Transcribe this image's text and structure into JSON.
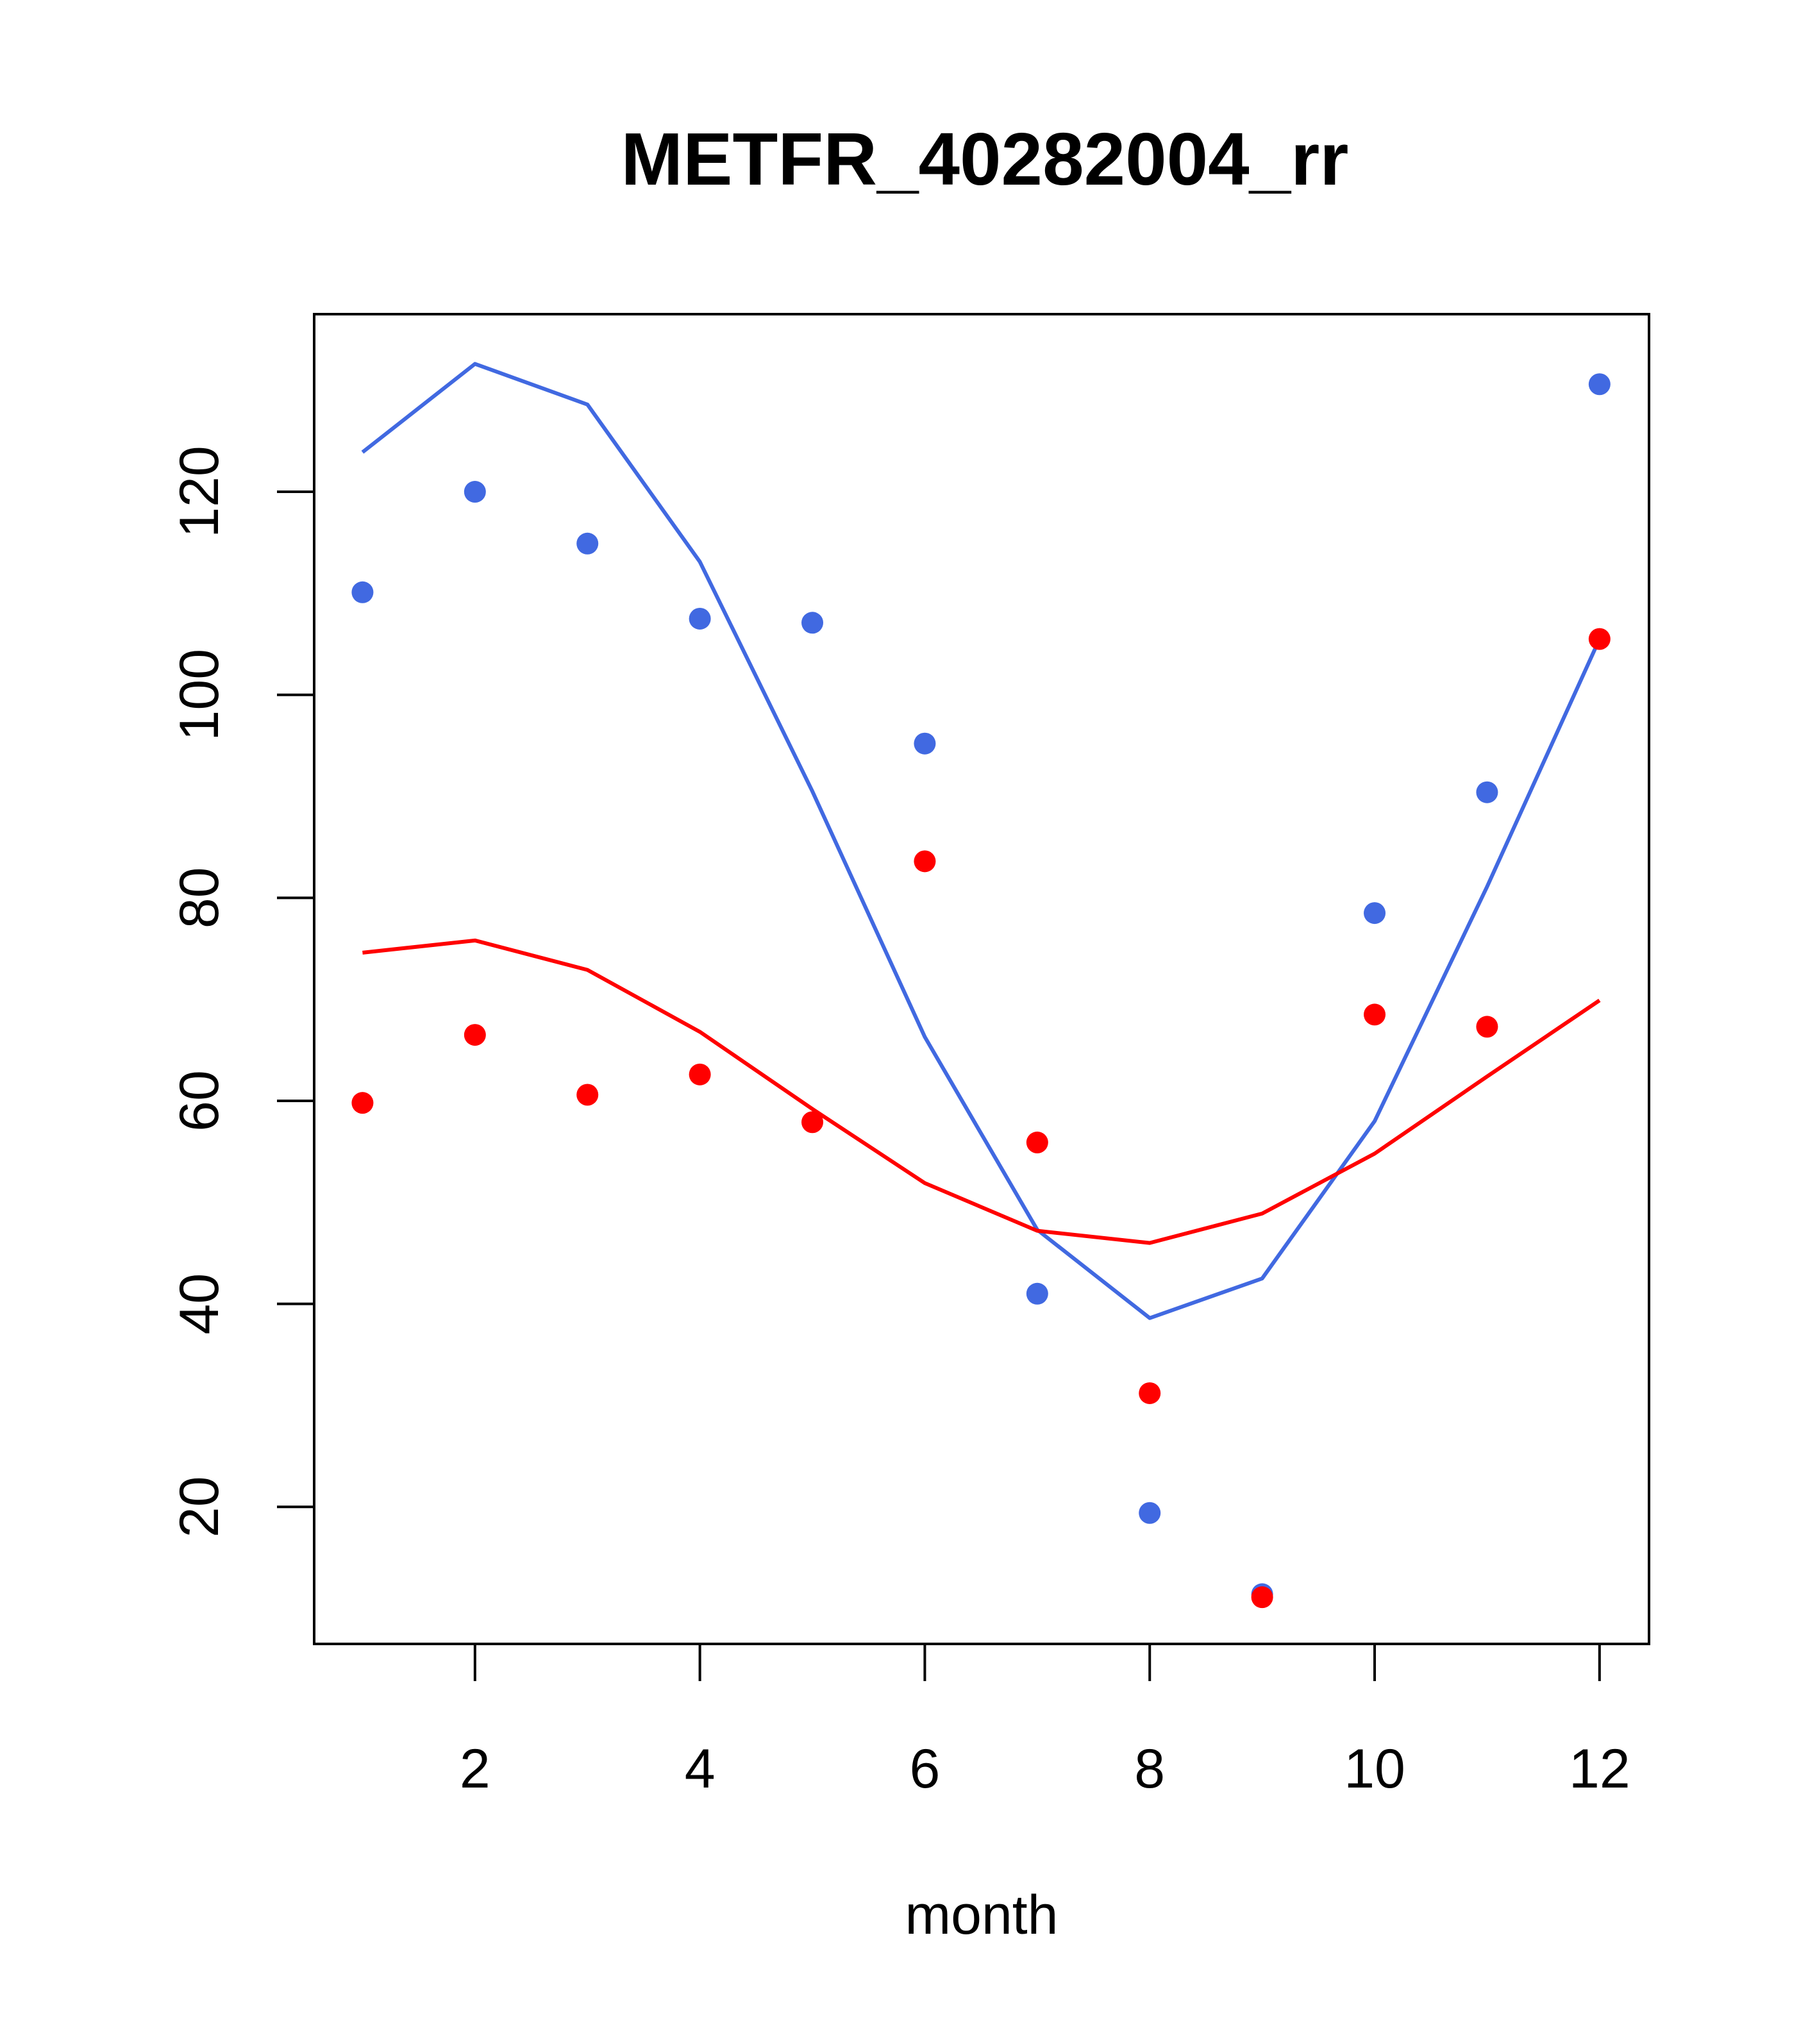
{
  "chart_data": {
    "type": "scatter",
    "title": "METFR_40282004_rr",
    "xlabel": "month",
    "ylabel": "",
    "xlim": [
      0.57,
      12.44
    ],
    "ylim": [
      6.5,
      137.5
    ],
    "x_ticks": [
      2,
      4,
      6,
      8,
      10,
      12
    ],
    "y_ticks": [
      20,
      40,
      60,
      80,
      100,
      120
    ],
    "grid": false,
    "legend": null,
    "x": [
      1,
      2,
      3,
      4,
      5,
      6,
      7,
      8,
      9,
      10,
      11,
      12
    ],
    "series": [
      {
        "name": "blue points",
        "kind": "points",
        "color": "#4169E1",
        "values": [
          110.1,
          120.0,
          114.9,
          107.5,
          107.1,
          95.2,
          41.0,
          19.4,
          11.4,
          78.5,
          90.4,
          130.6
        ]
      },
      {
        "name": "red points",
        "kind": "points",
        "color": "#FF0000",
        "values": [
          59.8,
          66.5,
          60.6,
          62.6,
          57.9,
          83.6,
          55.9,
          31.2,
          11.1,
          68.5,
          67.3,
          105.5
        ]
      },
      {
        "name": "blue line",
        "kind": "line",
        "color": "#4169E1",
        "values": [
          123.9,
          132.6,
          128.6,
          113.1,
          90.5,
          66.3,
          47.3,
          38.6,
          42.5,
          58.0,
          81.1,
          105.5
        ]
      },
      {
        "name": "red line",
        "kind": "line",
        "color": "#FF0000",
        "values": [
          74.6,
          75.8,
          72.9,
          66.8,
          59.2,
          51.9,
          47.2,
          46.0,
          48.9,
          54.8,
          62.4,
          69.9
        ]
      }
    ]
  }
}
